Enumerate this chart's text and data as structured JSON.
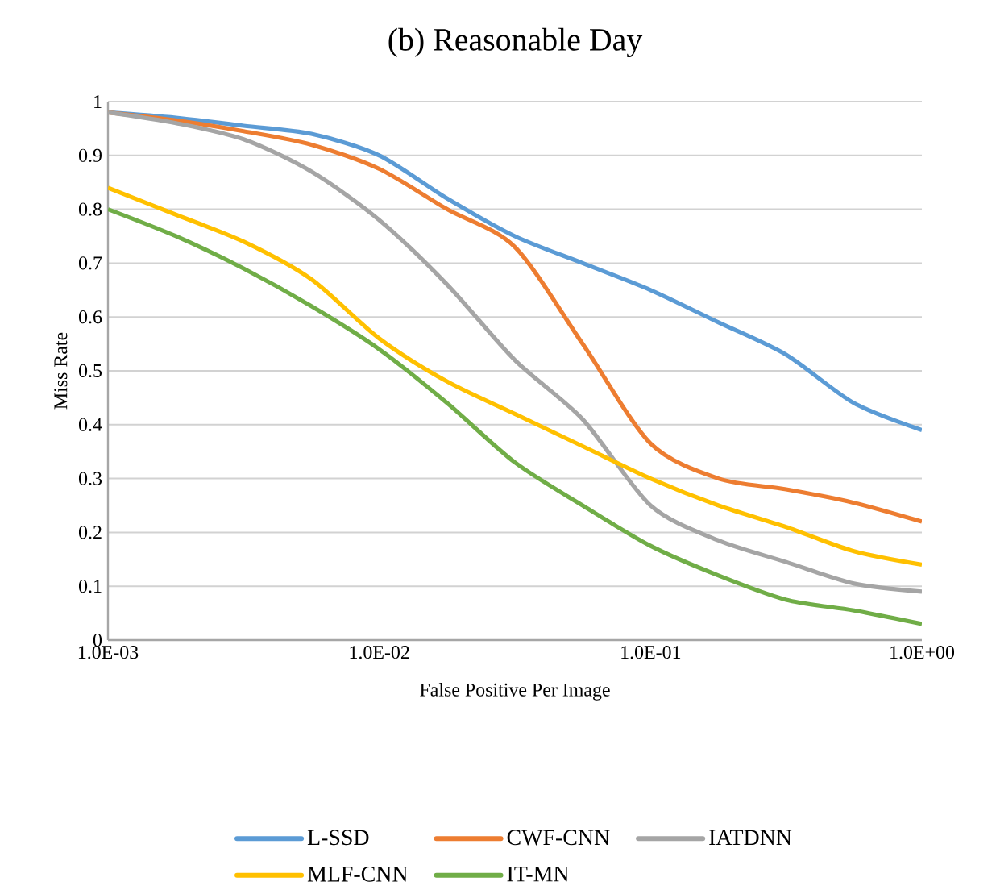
{
  "chart_data": {
    "type": "line",
    "title": "(b) Reasonable Day",
    "xlabel": "False Positive Per Image",
    "ylabel": "Miss Rate",
    "log": "x",
    "x": [
      0.001,
      0.00178,
      0.00316,
      0.00562,
      0.01,
      0.0178,
      0.0316,
      0.0562,
      0.1,
      0.178,
      0.316,
      0.562,
      1
    ],
    "series": [
      {
        "name": "L-SSD",
        "color": "#5b9bd5",
        "values": [
          0.98,
          0.97,
          0.955,
          0.94,
          0.9,
          0.82,
          0.75,
          0.7,
          0.65,
          0.59,
          0.53,
          0.44,
          0.39
        ]
      },
      {
        "name": "CWF-CNN",
        "color": "#ed7d31",
        "values": [
          0.98,
          0.965,
          0.945,
          0.92,
          0.875,
          0.8,
          0.73,
          0.55,
          0.365,
          0.3,
          0.28,
          0.255,
          0.22
        ]
      },
      {
        "name": "IATDNN",
        "color": "#a5a5a5",
        "values": [
          0.98,
          0.96,
          0.93,
          0.87,
          0.78,
          0.66,
          0.52,
          0.41,
          0.25,
          0.185,
          0.145,
          0.105,
          0.09
        ]
      },
      {
        "name": "MLF-CNN",
        "color": "#ffc000",
        "values": [
          0.84,
          0.79,
          0.74,
          0.67,
          0.56,
          0.48,
          0.42,
          0.36,
          0.3,
          0.25,
          0.21,
          0.165,
          0.14
        ]
      },
      {
        "name": "IT-MN",
        "color": "#70ad47",
        "values": [
          0.8,
          0.75,
          0.69,
          0.62,
          0.54,
          0.44,
          0.33,
          0.25,
          0.175,
          0.12,
          0.075,
          0.055,
          0.03
        ]
      }
    ],
    "xlim": [
      0.001,
      1
    ],
    "xticks": [
      {
        "value": 0.001,
        "label": "1.0E-03"
      },
      {
        "value": 0.01,
        "label": "1.0E-02"
      },
      {
        "value": 0.1,
        "label": "1.0E-01"
      },
      {
        "value": 1,
        "label": "1.0E+00"
      }
    ],
    "ylim": [
      0,
      1
    ],
    "yticks": [
      0,
      0.1,
      0.2,
      0.3,
      0.4,
      0.5,
      0.6,
      0.7,
      0.8,
      0.9,
      1
    ],
    "grid": "y",
    "legend": "bottom",
    "line_style": "solid"
  }
}
